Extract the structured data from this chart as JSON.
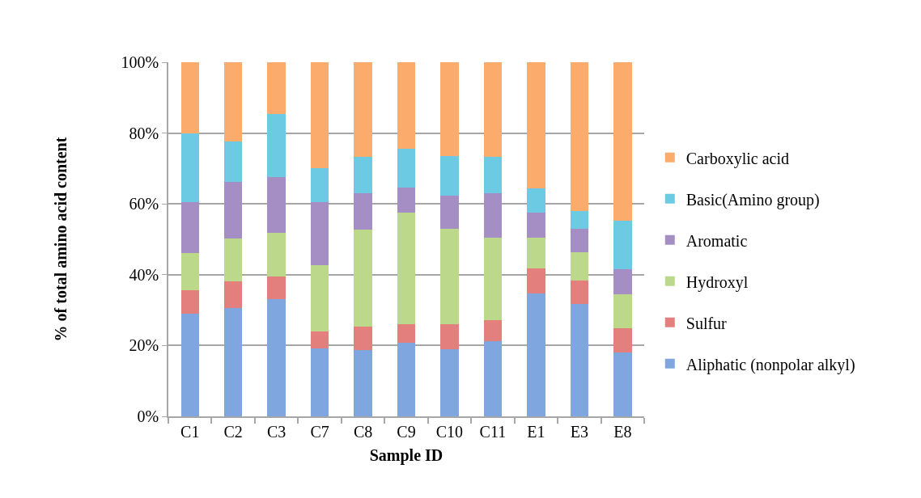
{
  "chart_data": {
    "type": "bar",
    "stacked": true,
    "xlabel": "Sample ID",
    "ylabel": "% of total amino acid content",
    "categories": [
      "C1",
      "C2",
      "C3",
      "C7",
      "C8",
      "C9",
      "C10",
      "C11",
      "E1",
      "E3",
      "E8"
    ],
    "series": [
      {
        "name": "Aliphatic (nonpolar alkyl)",
        "color": "#7fa6de",
        "values": [
          29.0,
          30.6,
          33.2,
          19.2,
          18.8,
          20.8,
          19.0,
          21.3,
          34.8,
          31.8,
          18.1
        ]
      },
      {
        "name": "Sulfur",
        "color": "#e3807d",
        "values": [
          6.7,
          7.6,
          6.4,
          4.8,
          6.6,
          5.3,
          7.1,
          5.9,
          7.0,
          6.6,
          6.8
        ]
      },
      {
        "name": "Hydroxyl",
        "color": "#bcd88a",
        "values": [
          10.5,
          12.1,
          12.3,
          18.8,
          27.4,
          31.5,
          26.9,
          23.3,
          8.7,
          8.0,
          9.6
        ]
      },
      {
        "name": "Aromatic",
        "color": "#a48ec4",
        "values": [
          14.4,
          15.8,
          15.6,
          17.8,
          10.3,
          6.9,
          9.4,
          12.6,
          7.1,
          6.6,
          7.1
        ]
      },
      {
        "name": "Basic(Amino group)",
        "color": "#6ccbe3",
        "values": [
          19.4,
          11.6,
          17.8,
          9.4,
          10.1,
          11.0,
          11.2,
          10.1,
          6.7,
          5.1,
          13.7
        ]
      },
      {
        "name": "Carboxylic acid",
        "color": "#fbab6c",
        "values": [
          20.0,
          22.3,
          14.7,
          30.0,
          26.8,
          24.5,
          26.4,
          26.8,
          35.7,
          41.9,
          44.7
        ]
      }
    ],
    "ylim": [
      0,
      100
    ],
    "yticks": [
      {
        "value": 0,
        "label": "0%"
      },
      {
        "value": 20,
        "label": "20%"
      },
      {
        "value": 40,
        "label": "40%"
      },
      {
        "value": 60,
        "label": "60%"
      },
      {
        "value": 80,
        "label": "80%"
      },
      {
        "value": 100,
        "label": "100%"
      }
    ],
    "grid": "y",
    "legend": "right"
  }
}
